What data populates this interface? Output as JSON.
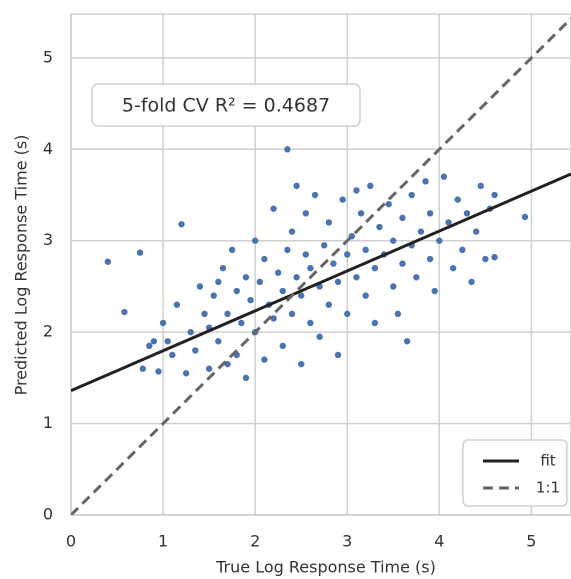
{
  "chart_data": {
    "type": "scatter",
    "xlabel": "True Log Response Time (s)",
    "ylabel": "Predicted Log Response Time (s)",
    "annotation": "5-fold CV R² = 0.4687",
    "xlim": [
      0,
      5.43
    ],
    "ylim": [
      0,
      5.48
    ],
    "xticks": [
      0,
      1,
      2,
      3,
      4,
      5
    ],
    "yticks": [
      0,
      1,
      2,
      3,
      4,
      5
    ],
    "grid": true,
    "legend": "lower right",
    "points": {
      "color": "#4c72b0",
      "x": [
        0.4,
        0.58,
        0.75,
        0.78,
        0.85,
        0.95,
        1.0,
        1.05,
        1.1,
        1.15,
        1.2,
        1.25,
        1.3,
        1.35,
        1.4,
        1.45,
        1.5,
        1.5,
        1.55,
        1.6,
        1.65,
        1.7,
        1.7,
        1.75,
        1.8,
        1.8,
        1.85,
        1.9,
        1.9,
        1.95,
        2.0,
        2.0,
        2.05,
        2.1,
        2.1,
        2.15,
        2.2,
        2.2,
        2.25,
        2.3,
        2.3,
        2.35,
        2.35,
        2.4,
        2.4,
        2.45,
        2.5,
        2.5,
        2.55,
        2.55,
        2.6,
        2.6,
        2.65,
        2.7,
        2.7,
        2.75,
        2.8,
        2.8,
        2.85,
        2.9,
        2.9,
        2.95,
        3.0,
        3.0,
        3.05,
        3.1,
        3.15,
        3.2,
        3.2,
        3.25,
        3.3,
        3.3,
        3.35,
        3.4,
        3.45,
        3.5,
        3.5,
        3.55,
        3.6,
        3.6,
        3.65,
        3.7,
        3.7,
        3.75,
        3.8,
        3.85,
        3.9,
        3.9,
        3.95,
        4.0,
        4.05,
        4.1,
        4.15,
        4.2,
        4.25,
        4.3,
        4.35,
        4.4,
        4.45,
        4.5,
        4.55,
        4.6,
        4.6,
        4.93,
        0.9,
        1.6,
        2.45,
        3.1
      ],
      "values": [
        2.77,
        2.22,
        2.87,
        1.6,
        1.85,
        1.57,
        2.1,
        1.9,
        1.75,
        2.3,
        3.18,
        1.55,
        2.0,
        1.8,
        2.5,
        2.2,
        1.6,
        2.05,
        2.4,
        1.9,
        2.7,
        2.2,
        1.65,
        2.9,
        2.45,
        1.75,
        2.1,
        2.6,
        1.5,
        2.35,
        3.0,
        2.0,
        2.55,
        1.7,
        2.8,
        2.3,
        3.35,
        2.15,
        2.65,
        1.85,
        2.45,
        4.0,
        2.9,
        2.2,
        3.1,
        2.6,
        1.65,
        2.4,
        2.85,
        3.3,
        2.1,
        2.7,
        3.5,
        2.5,
        1.95,
        2.95,
        2.3,
        3.2,
        2.75,
        1.75,
        2.55,
        3.45,
        2.85,
        2.2,
        3.05,
        2.6,
        3.3,
        2.4,
        2.9,
        3.6,
        2.7,
        2.1,
        3.15,
        2.85,
        3.4,
        2.5,
        3.0,
        2.2,
        3.25,
        2.75,
        1.9,
        3.5,
        2.95,
        2.6,
        3.1,
        3.65,
        2.8,
        3.3,
        2.45,
        3.0,
        3.7,
        3.2,
        2.7,
        3.45,
        2.9,
        3.3,
        2.55,
        3.1,
        3.6,
        2.8,
        3.35,
        3.5,
        2.82,
        3.26,
        1.9,
        2.55,
        3.6,
        3.55
      ]
    },
    "series": [
      {
        "name": "fit",
        "color": "#222222",
        "dash": false,
        "x": [
          0,
          5.43
        ],
        "values": [
          1.36,
          3.73
        ]
      },
      {
        "name": "1:1",
        "color": "#666666",
        "dash": true,
        "x": [
          0,
          5.43
        ],
        "values": [
          0,
          5.43
        ]
      }
    ]
  }
}
